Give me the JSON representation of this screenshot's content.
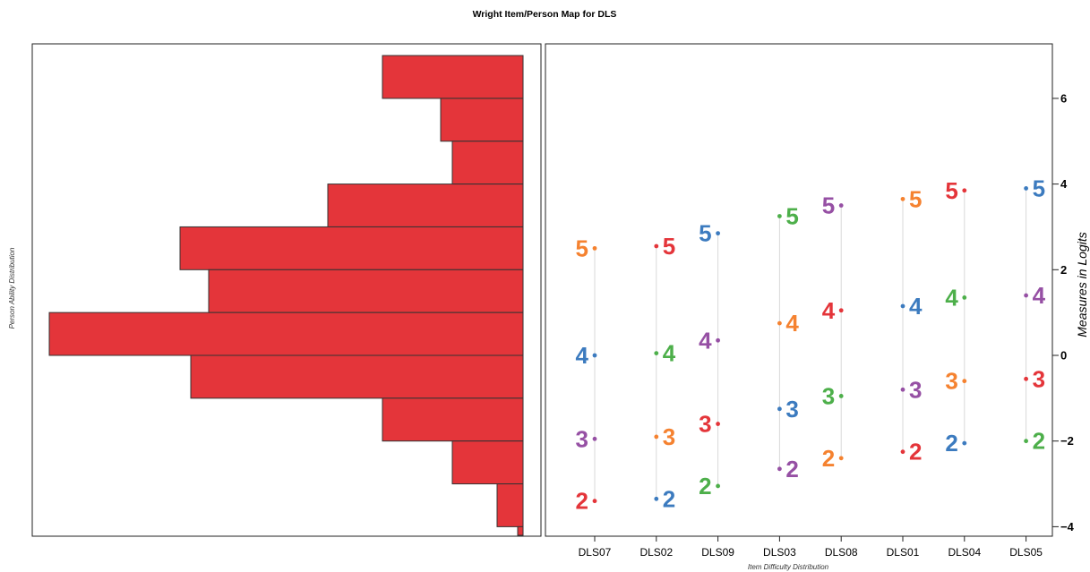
{
  "chart_data": {
    "type": "wright-map",
    "title": "Wright Item/Person Map for DLS",
    "person_panel": {
      "type": "bar",
      "orientation": "horizontal",
      "ylabel": "Person Ability Distribution",
      "bin_width": 1,
      "bins": [
        {
          "from": 6,
          "to": 7,
          "count": 157
        },
        {
          "from": 5,
          "to": 6,
          "count": 92
        },
        {
          "from": 4,
          "to": 5,
          "count": 79
        },
        {
          "from": 3,
          "to": 4,
          "count": 218
        },
        {
          "from": 2,
          "to": 3,
          "count": 383
        },
        {
          "from": 1,
          "to": 2,
          "count": 351
        },
        {
          "from": 0,
          "to": 1,
          "count": 529
        },
        {
          "from": -1,
          "to": 0,
          "count": 371
        },
        {
          "from": -2,
          "to": -1,
          "count": 157
        },
        {
          "from": -3,
          "to": -2,
          "count": 79
        },
        {
          "from": -4,
          "to": -3,
          "count": 29
        },
        {
          "from": -4.2,
          "to": -4,
          "count": 6
        }
      ],
      "xlim": [
        0,
        540
      ],
      "bar_color": "#e4353a"
    },
    "item_panel": {
      "type": "scatter",
      "xlabel": "Item Difficulty Distribution",
      "ylabel": "Measures in Logits",
      "ylim": [
        -4.2,
        7.2
      ],
      "yticks": [
        -4,
        -2,
        0,
        2,
        4,
        6
      ],
      "categories": [
        "DLS07",
        "DLS02",
        "DLS09",
        "DLS03",
        "DLS08",
        "DLS01",
        "DLS04",
        "DLS05"
      ],
      "items": [
        {
          "label": "DLS07",
          "thresholds": [
            {
              "cat": "2",
              "value": -3.4
            },
            {
              "cat": "3",
              "value": -1.95
            },
            {
              "cat": "4",
              "value": 0.0
            },
            {
              "cat": "5",
              "value": 2.5
            }
          ]
        },
        {
          "label": "DLS02",
          "thresholds": [
            {
              "cat": "2",
              "value": -3.35
            },
            {
              "cat": "3",
              "value": -1.9
            },
            {
              "cat": "4",
              "value": 0.05
            },
            {
              "cat": "5",
              "value": 2.55
            }
          ]
        },
        {
          "label": "DLS09",
          "thresholds": [
            {
              "cat": "2",
              "value": -3.05
            },
            {
              "cat": "3",
              "value": -1.6
            },
            {
              "cat": "4",
              "value": 0.35
            },
            {
              "cat": "5",
              "value": 2.85
            }
          ]
        },
        {
          "label": "DLS03",
          "thresholds": [
            {
              "cat": "2",
              "value": -2.65
            },
            {
              "cat": "3",
              "value": -1.25
            },
            {
              "cat": "4",
              "value": 0.75
            },
            {
              "cat": "5",
              "value": 3.25
            }
          ]
        },
        {
          "label": "DLS08",
          "thresholds": [
            {
              "cat": "2",
              "value": -2.4
            },
            {
              "cat": "3",
              "value": -0.95
            },
            {
              "cat": "4",
              "value": 1.05
            },
            {
              "cat": "5",
              "value": 3.5
            }
          ]
        },
        {
          "label": "DLS01",
          "thresholds": [
            {
              "cat": "2",
              "value": -2.25
            },
            {
              "cat": "3",
              "value": -0.8
            },
            {
              "cat": "4",
              "value": 1.15
            },
            {
              "cat": "5",
              "value": 3.65
            }
          ]
        },
        {
          "label": "DLS04",
          "thresholds": [
            {
              "cat": "2",
              "value": -2.05
            },
            {
              "cat": "3",
              "value": -0.6
            },
            {
              "cat": "4",
              "value": 1.35
            },
            {
              "cat": "5",
              "value": 3.85
            }
          ]
        },
        {
          "label": "DLS05",
          "thresholds": [
            {
              "cat": "2",
              "value": -2.0
            },
            {
              "cat": "3",
              "value": -0.55
            },
            {
              "cat": "4",
              "value": 1.4
            },
            {
              "cat": "5",
              "value": 3.9
            }
          ]
        }
      ],
      "label_sides": [
        "left",
        "right",
        "left",
        "right",
        "left",
        "right",
        "left",
        "right"
      ],
      "label_side_by_cat": {
        "DLS04": {
          "2": "left",
          "3": "left",
          "4": "left",
          "5": "left"
        }
      },
      "palette": [
        "#e4353a",
        "#3c7bbf",
        "#4daf4a",
        "#9650a4",
        "#f58230"
      ],
      "category_colors": [
        [
          "#e4353a",
          "#9650a4",
          "#3c7bbf",
          "#f58230"
        ],
        [
          "#3c7bbf",
          "#f58230",
          "#4daf4a",
          "#e4353a"
        ],
        [
          "#4daf4a",
          "#e4353a",
          "#9650a4",
          "#3c7bbf"
        ],
        [
          "#9650a4",
          "#3c7bbf",
          "#f58230",
          "#4daf4a"
        ],
        [
          "#f58230",
          "#4daf4a",
          "#e4353a",
          "#9650a4"
        ],
        [
          "#e4353a",
          "#9650a4",
          "#3c7bbf",
          "#f58230"
        ],
        [
          "#3c7bbf",
          "#f58230",
          "#4daf4a",
          "#e4353a"
        ],
        [
          "#4daf4a",
          "#e4353a",
          "#9650a4",
          "#3c7bbf"
        ]
      ]
    }
  }
}
